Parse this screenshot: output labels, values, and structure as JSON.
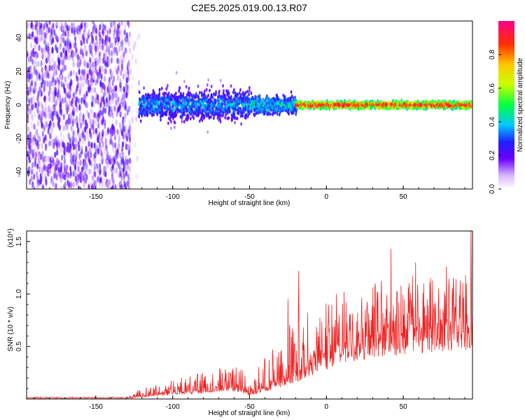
{
  "title": "C2E5.2025.019.00.13.R07",
  "chart_data": [
    {
      "type": "heatmap",
      "xlabel": "Height of straight line (km)",
      "ylabel": "Frequency (Hz)",
      "xlim": [
        -195,
        95
      ],
      "ylim": [
        -50,
        50
      ],
      "xticks": [
        -150,
        -100,
        -50,
        0,
        50
      ],
      "yticks": [
        -40,
        -20,
        0,
        20,
        40
      ],
      "colorbar": {
        "label": "Normalized spectral amplitude",
        "range": [
          0,
          1
        ],
        "ticks": [
          0.0,
          0.2,
          0.4,
          0.6,
          0.8
        ],
        "tick_labels": [
          "0.0",
          "0.2",
          "0.4",
          "0.6",
          "0.8"
        ]
      },
      "regions": [
        {
          "x": [
            -195,
            -128
          ],
          "freq_spread": 50,
          "amplitude": [
            0.05,
            0.25
          ]
        },
        {
          "x": [
            -128,
            -122
          ],
          "freq_spread": 45,
          "amplitude": [
            0.02,
            0.1
          ]
        },
        {
          "x": [
            -122,
            -50
          ],
          "freq_spread": 12,
          "amplitude": [
            0.1,
            0.45
          ]
        },
        {
          "x": [
            -50,
            -20
          ],
          "freq_spread": 8,
          "amplitude": [
            0.15,
            0.5
          ]
        },
        {
          "x": [
            -20,
            95
          ],
          "freq_spread": 3,
          "amplitude": [
            0.3,
            0.95
          ]
        }
      ]
    },
    {
      "type": "line",
      "xlabel": "Height of straight line (km)",
      "ylabel": "SNR (10 * v/v)",
      "yscale_label": "(x10⁴)",
      "xlim": [
        -195,
        95
      ],
      "ylim": [
        0,
        1.6
      ],
      "xticks": [
        -150,
        -100,
        -50,
        0,
        50
      ],
      "yticks": [
        0.5,
        1.0,
        1.5
      ],
      "ytick_labels": [
        "0.5",
        "1.0",
        "1.5"
      ],
      "series_color": "#ee2020",
      "envelope": {
        "x": [
          -195,
          -130,
          -125,
          -120,
          -100,
          -80,
          -65,
          -55,
          -50,
          -45,
          -35,
          -25,
          -15,
          -5,
          5,
          15,
          25,
          40,
          55,
          70,
          85,
          95
        ],
        "baseline": [
          0.01,
          0.01,
          0.015,
          0.03,
          0.06,
          0.09,
          0.12,
          0.1,
          0.05,
          0.08,
          0.15,
          0.22,
          0.3,
          0.4,
          0.48,
          0.55,
          0.62,
          0.68,
          0.7,
          0.72,
          0.7,
          0.65
        ],
        "peak": [
          0.02,
          0.02,
          0.06,
          0.12,
          0.18,
          0.26,
          0.32,
          0.3,
          0.12,
          0.3,
          0.5,
          0.7,
          0.85,
          0.9,
          1.0,
          1.05,
          1.1,
          1.15,
          1.2,
          1.15,
          1.2,
          1.3
        ]
      },
      "spikes": [
        {
          "x": -18,
          "y": 1.22
        },
        {
          "x": -25,
          "y": 0.95
        },
        {
          "x": 42,
          "y": 1.43
        },
        {
          "x": 58,
          "y": 1.3
        },
        {
          "x": 78,
          "y": 1.26
        },
        {
          "x": 94,
          "y": 1.6
        }
      ]
    }
  ]
}
